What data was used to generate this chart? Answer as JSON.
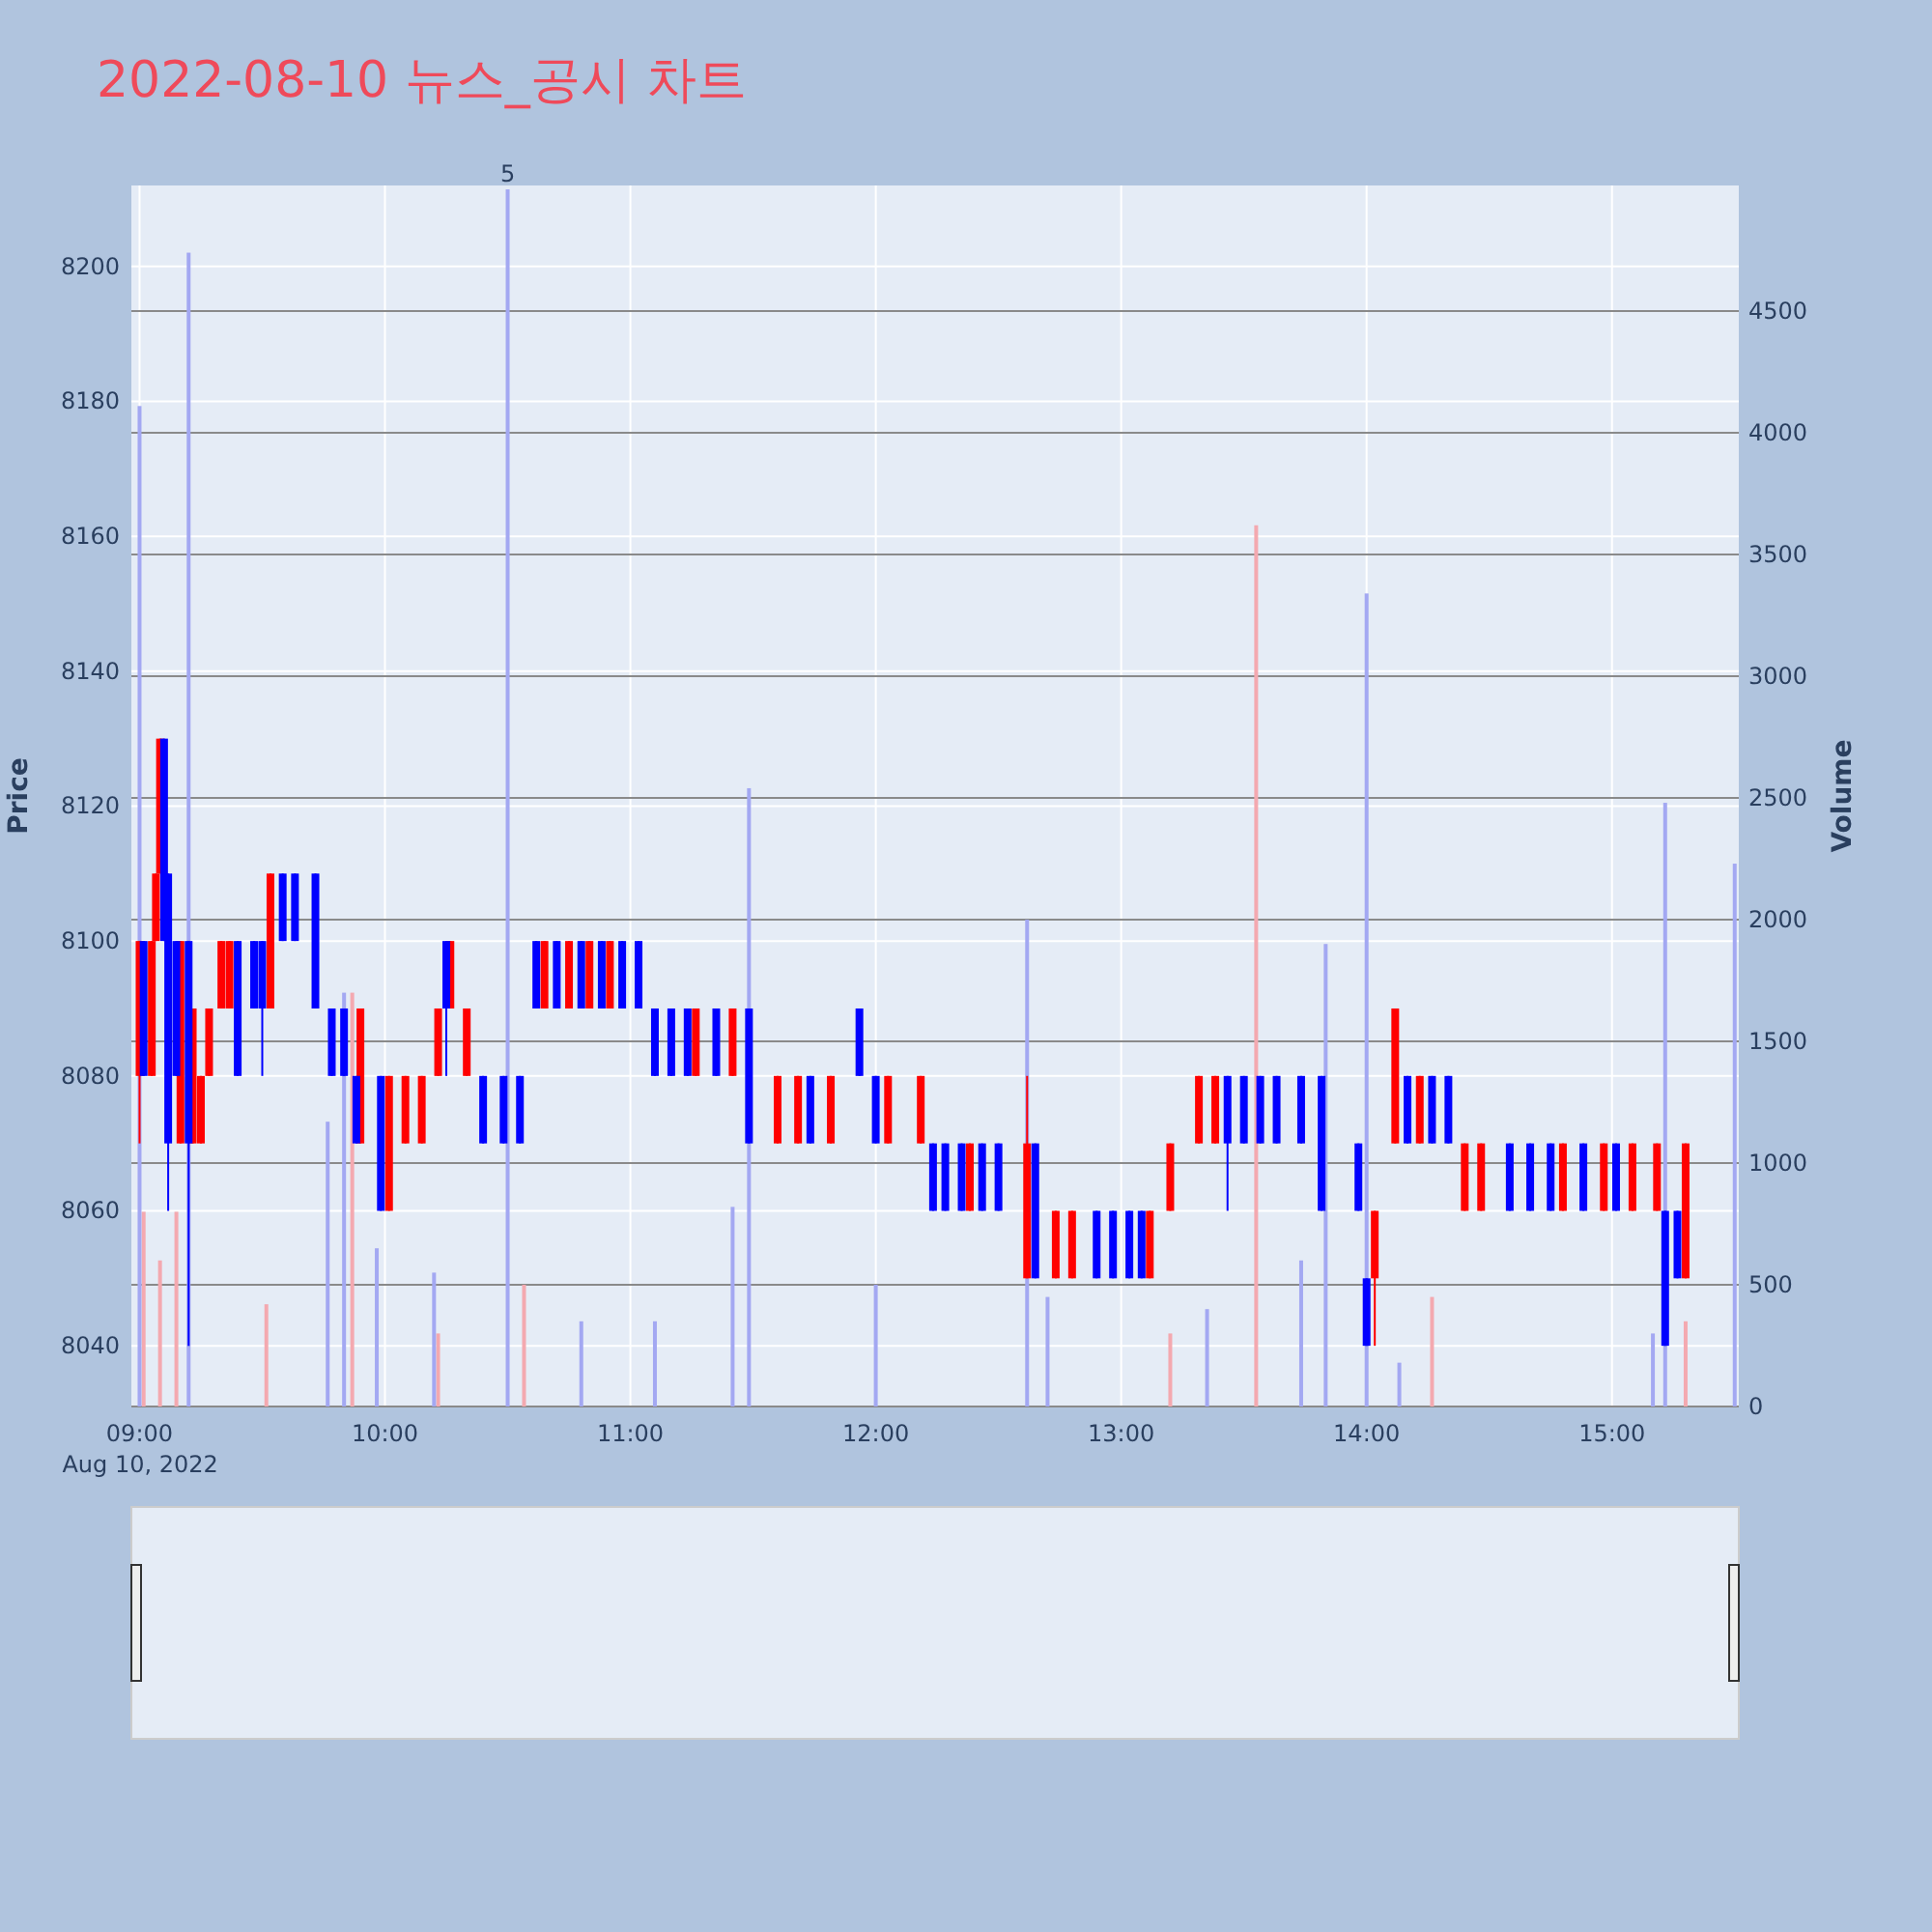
{
  "chart_data": {
    "type": "candlestick",
    "title": "2022-08-10 뉴스_공시 차트",
    "ylabel": "Price",
    "y2label": "Volume",
    "xlim": [
      "2022-08-10T08:58",
      "2022-08-10T15:31"
    ],
    "xticks": [
      {
        "value": "2022-08-10T09:00",
        "label": "09:00"
      },
      {
        "value": "2022-08-10T10:00",
        "label": "10:00"
      },
      {
        "value": "2022-08-10T11:00",
        "label": "11:00"
      },
      {
        "value": "2022-08-10T12:00",
        "label": "12:00"
      },
      {
        "value": "2022-08-10T13:00",
        "label": "13:00"
      },
      {
        "value": "2022-08-10T14:00",
        "label": "14:00"
      },
      {
        "value": "2022-08-10T15:00",
        "label": "15:00"
      }
    ],
    "ylim": [
      8031,
      8212
    ],
    "yticks": [
      8040,
      8060,
      8080,
      8100,
      8120,
      8140,
      8160,
      8180,
      8200
    ],
    "y2lim": [
      0,
      5016
    ],
    "y2ticks": [
      0,
      500,
      1000,
      1500,
      2000,
      2500,
      3000,
      3500,
      4000,
      4500
    ],
    "grid": true,
    "annotations": [
      "Aug 10, 2022",
      "5"
    ],
    "series": [
      {
        "type": "bar",
        "axis": "y2",
        "color": "#f4a9b0",
        "x": [
          "2022-08-10T09:01",
          "2022-08-10T09:05",
          "2022-08-10T09:09",
          "2022-08-10T09:31",
          "2022-08-10T09:52",
          "2022-08-10T10:13",
          "2022-08-10T10:34",
          "2022-08-10T13:12",
          "2022-08-10T13:33",
          "2022-08-10T14:16",
          "2022-08-10T15:18"
        ],
        "values": [
          800,
          600,
          800,
          420,
          1700,
          300,
          500,
          300,
          3620,
          450,
          350
        ]
      },
      {
        "type": "bar",
        "axis": "y2",
        "color": "#a3a8f2",
        "x": [
          "2022-08-10T09:00",
          "2022-08-10T09:12",
          "2022-08-10T09:46",
          "2022-08-10T09:50",
          "2022-08-10T09:58",
          "2022-08-10T10:12",
          "2022-08-10T10:30",
          "2022-08-10T10:48",
          "2022-08-10T11:06",
          "2022-08-10T11:25",
          "2022-08-10T11:29",
          "2022-08-10T12:00",
          "2022-08-10T12:37",
          "2022-08-10T12:42",
          "2022-08-10T13:21",
          "2022-08-10T13:44",
          "2022-08-10T13:50",
          "2022-08-10T14:00",
          "2022-08-10T14:08",
          "2022-08-10T15:10",
          "2022-08-10T15:13",
          "2022-08-10T15:30"
        ],
        "values": [
          4110,
          4740,
          1170,
          1700,
          650,
          550,
          5000,
          350,
          350,
          820,
          2540,
          500,
          2000,
          450,
          400,
          600,
          1900,
          3340,
          180,
          300,
          2480,
          2230
        ]
      },
      {
        "color": "#ff0000",
        "x": [
          "2022-08-10T09:00",
          "2022-08-10T09:03",
          "2022-08-10T09:04",
          "2022-08-10T09:05",
          "2022-08-10T09:10",
          "2022-08-10T09:13",
          "2022-08-10T09:15",
          "2022-08-10T09:17",
          "2022-08-10T09:20",
          "2022-08-10T09:22",
          "2022-08-10T09:32",
          "2022-08-10T09:54",
          "2022-08-10T10:01",
          "2022-08-10T10:05",
          "2022-08-10T10:09",
          "2022-08-10T10:13",
          "2022-08-10T10:16",
          "2022-08-10T10:20",
          "2022-08-10T10:39",
          "2022-08-10T10:45",
          "2022-08-10T10:50",
          "2022-08-10T10:55",
          "2022-08-10T11:16",
          "2022-08-10T11:25",
          "2022-08-10T11:36",
          "2022-08-10T11:41",
          "2022-08-10T11:49",
          "2022-08-10T12:03",
          "2022-08-10T12:11",
          "2022-08-10T12:23",
          "2022-08-10T12:37",
          "2022-08-10T12:44",
          "2022-08-10T12:48",
          "2022-08-10T13:07",
          "2022-08-10T13:12",
          "2022-08-10T13:19",
          "2022-08-10T13:23",
          "2022-08-10T14:02",
          "2022-08-10T14:07",
          "2022-08-10T14:13",
          "2022-08-10T14:24",
          "2022-08-10T14:28",
          "2022-08-10T14:48",
          "2022-08-10T14:58",
          "2022-08-10T15:05",
          "2022-08-10T15:11",
          "2022-08-10T15:18"
        ],
        "ohlc": [
          [
            8080,
            8100,
            8070,
            8100
          ],
          [
            8080,
            8100,
            8080,
            8100
          ],
          [
            8100,
            8110,
            8100,
            8110
          ],
          [
            8110,
            8130,
            8110,
            8130
          ],
          [
            8070,
            8100,
            8070,
            8100
          ],
          [
            8070,
            8090,
            8070,
            8090
          ],
          [
            8070,
            8080,
            8070,
            8080
          ],
          [
            8080,
            8090,
            8080,
            8090
          ],
          [
            8090,
            8100,
            8090,
            8100
          ],
          [
            8090,
            8100,
            8090,
            8100
          ],
          [
            8090,
            8110,
            8090,
            8110
          ],
          [
            8070,
            8090,
            8070,
            8090
          ],
          [
            8060,
            8080,
            8060,
            8080
          ],
          [
            8070,
            8080,
            8070,
            8080
          ],
          [
            8070,
            8080,
            8070,
            8080
          ],
          [
            8080,
            8090,
            8080,
            8090
          ],
          [
            8090,
            8100,
            8090,
            8100
          ],
          [
            8080,
            8090,
            8080,
            8090
          ],
          [
            8090,
            8100,
            8090,
            8100
          ],
          [
            8090,
            8100,
            8090,
            8100
          ],
          [
            8090,
            8100,
            8090,
            8100
          ],
          [
            8090,
            8100,
            8090,
            8100
          ],
          [
            8080,
            8090,
            8080,
            8090
          ],
          [
            8080,
            8090,
            8080,
            8090
          ],
          [
            8070,
            8080,
            8070,
            8080
          ],
          [
            8070,
            8080,
            8070,
            8080
          ],
          [
            8070,
            8080,
            8070,
            8080
          ],
          [
            8070,
            8080,
            8070,
            8080
          ],
          [
            8070,
            8080,
            8070,
            8080
          ],
          [
            8060,
            8070,
            8060,
            8070
          ],
          [
            8050,
            8080,
            8050,
            8070
          ],
          [
            8050,
            8060,
            8050,
            8060
          ],
          [
            8050,
            8060,
            8050,
            8060
          ],
          [
            8050,
            8060,
            8050,
            8060
          ],
          [
            8060,
            8070,
            8060,
            8070
          ],
          [
            8070,
            8080,
            8070,
            8080
          ],
          [
            8070,
            8080,
            8070,
            8080
          ],
          [
            8050,
            8060,
            8040,
            8060
          ],
          [
            8070,
            8090,
            8070,
            8090
          ],
          [
            8070,
            8080,
            8070,
            8080
          ],
          [
            8060,
            8070,
            8060,
            8070
          ],
          [
            8060,
            8070,
            8060,
            8070
          ],
          [
            8060,
            8070,
            8060,
            8070
          ],
          [
            8060,
            8070,
            8060,
            8070
          ],
          [
            8060,
            8070,
            8060,
            8070
          ],
          [
            8060,
            8070,
            8060,
            8070
          ],
          [
            8050,
            8070,
            8050,
            8070
          ]
        ]
      },
      {
        "color": "#0000ff",
        "x": [
          "2022-08-10T09:01",
          "2022-08-10T09:06",
          "2022-08-10T09:07",
          "2022-08-10T09:09",
          "2022-08-10T09:12",
          "2022-08-10T09:24",
          "2022-08-10T09:28",
          "2022-08-10T09:30",
          "2022-08-10T09:35",
          "2022-08-10T09:38",
          "2022-08-10T09:43",
          "2022-08-10T09:47",
          "2022-08-10T09:50",
          "2022-08-10T09:53",
          "2022-08-10T09:59",
          "2022-08-10T10:15",
          "2022-08-10T10:24",
          "2022-08-10T10:29",
          "2022-08-10T10:33",
          "2022-08-10T10:37",
          "2022-08-10T10:42",
          "2022-08-10T10:48",
          "2022-08-10T10:53",
          "2022-08-10T10:58",
          "2022-08-10T11:02",
          "2022-08-10T11:06",
          "2022-08-10T11:10",
          "2022-08-10T11:14",
          "2022-08-10T11:21",
          "2022-08-10T11:29",
          "2022-08-10T11:44",
          "2022-08-10T11:56",
          "2022-08-10T12:00",
          "2022-08-10T12:14",
          "2022-08-10T12:17",
          "2022-08-10T12:21",
          "2022-08-10T12:26",
          "2022-08-10T12:30",
          "2022-08-10T12:39",
          "2022-08-10T12:54",
          "2022-08-10T12:58",
          "2022-08-10T13:02",
          "2022-08-10T13:05",
          "2022-08-10T13:26",
          "2022-08-10T13:30",
          "2022-08-10T13:34",
          "2022-08-10T13:38",
          "2022-08-10T13:44",
          "2022-08-10T13:49",
          "2022-08-10T13:58",
          "2022-08-10T14:00",
          "2022-08-10T14:10",
          "2022-08-10T14:16",
          "2022-08-10T14:20",
          "2022-08-10T14:35",
          "2022-08-10T14:40",
          "2022-08-10T14:45",
          "2022-08-10T14:53",
          "2022-08-10T15:01",
          "2022-08-10T15:13",
          "2022-08-10T15:16"
        ],
        "ohlc": [
          [
            8100,
            8100,
            8080,
            8080
          ],
          [
            8130,
            8130,
            8100,
            8100
          ],
          [
            8110,
            8110,
            8060,
            8070
          ],
          [
            8100,
            8100,
            8080,
            8080
          ],
          [
            8100,
            8100,
            8040,
            8070
          ],
          [
            8100,
            8100,
            8080,
            8080
          ],
          [
            8100,
            8100,
            8090,
            8090
          ],
          [
            8100,
            8100,
            8080,
            8090
          ],
          [
            8110,
            8110,
            8100,
            8100
          ],
          [
            8110,
            8110,
            8100,
            8100
          ],
          [
            8110,
            8110,
            8090,
            8090
          ],
          [
            8090,
            8090,
            8080,
            8080
          ],
          [
            8090,
            8090,
            8080,
            8080
          ],
          [
            8080,
            8080,
            8070,
            8070
          ],
          [
            8080,
            8080,
            8060,
            8060
          ],
          [
            8100,
            8100,
            8080,
            8090
          ],
          [
            8080,
            8080,
            8070,
            8070
          ],
          [
            8080,
            8080,
            8070,
            8070
          ],
          [
            8080,
            8080,
            8070,
            8070
          ],
          [
            8100,
            8100,
            8090,
            8090
          ],
          [
            8100,
            8100,
            8090,
            8090
          ],
          [
            8100,
            8100,
            8090,
            8090
          ],
          [
            8100,
            8100,
            8090,
            8090
          ],
          [
            8100,
            8100,
            8090,
            8090
          ],
          [
            8100,
            8100,
            8090,
            8090
          ],
          [
            8090,
            8090,
            8080,
            8080
          ],
          [
            8090,
            8090,
            8080,
            8080
          ],
          [
            8090,
            8090,
            8080,
            8080
          ],
          [
            8090,
            8090,
            8080,
            8080
          ],
          [
            8090,
            8090,
            8070,
            8070
          ],
          [
            8080,
            8080,
            8070,
            8070
          ],
          [
            8090,
            8090,
            8080,
            8080
          ],
          [
            8080,
            8080,
            8070,
            8070
          ],
          [
            8070,
            8070,
            8060,
            8060
          ],
          [
            8070,
            8070,
            8060,
            8060
          ],
          [
            8070,
            8070,
            8060,
            8060
          ],
          [
            8070,
            8070,
            8060,
            8060
          ],
          [
            8070,
            8070,
            8060,
            8060
          ],
          [
            8070,
            8070,
            8050,
            8050
          ],
          [
            8060,
            8060,
            8050,
            8050
          ],
          [
            8060,
            8060,
            8050,
            8050
          ],
          [
            8060,
            8060,
            8050,
            8050
          ],
          [
            8060,
            8060,
            8050,
            8050
          ],
          [
            8080,
            8080,
            8060,
            8070
          ],
          [
            8080,
            8080,
            8070,
            8070
          ],
          [
            8080,
            8080,
            8070,
            8070
          ],
          [
            8080,
            8080,
            8070,
            8070
          ],
          [
            8080,
            8080,
            8070,
            8070
          ],
          [
            8080,
            8080,
            8060,
            8060
          ],
          [
            8070,
            8070,
            8060,
            8060
          ],
          [
            8050,
            8050,
            8040,
            8040
          ],
          [
            8080,
            8080,
            8070,
            8070
          ],
          [
            8080,
            8080,
            8070,
            8070
          ],
          [
            8080,
            8080,
            8070,
            8070
          ],
          [
            8070,
            8070,
            8060,
            8060
          ],
          [
            8070,
            8070,
            8060,
            8060
          ],
          [
            8070,
            8070,
            8060,
            8060
          ],
          [
            8070,
            8070,
            8060,
            8060
          ],
          [
            8070,
            8070,
            8060,
            8060
          ],
          [
            8060,
            8060,
            8040,
            8040
          ],
          [
            8060,
            8060,
            8050,
            8050
          ]
        ]
      }
    ]
  }
}
